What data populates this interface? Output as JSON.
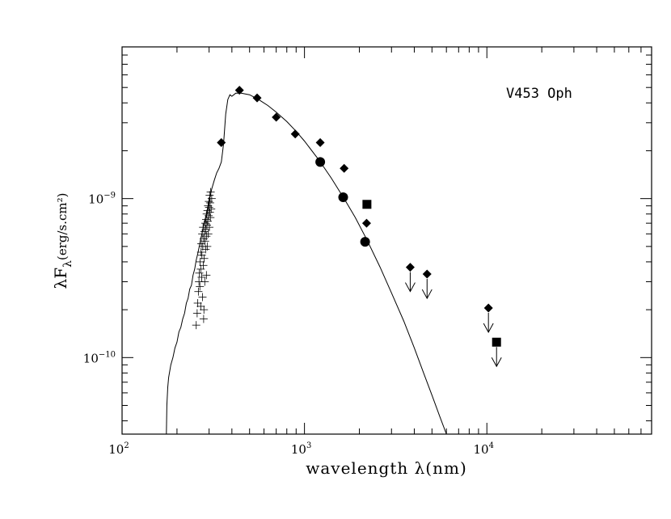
{
  "chart_data": {
    "type": "scatter",
    "title": "",
    "annotation": "V453 Oph",
    "xlabel": "wavelength λ(nm)",
    "ylabel": "λF",
    "ylabel_sub": "λ",
    "ylabel_unit": "(erg/s.cm²)",
    "x_scale": "log",
    "y_scale": "log",
    "xlim": [
      100,
      80000
    ],
    "ylim": [
      3.3e-11,
      9e-09
    ],
    "x_ticks": [
      {
        "value": 100,
        "base": "10",
        "exp": "2"
      },
      {
        "value": 1000,
        "base": "10",
        "exp": "3"
      },
      {
        "value": 10000,
        "base": "10",
        "exp": "4"
      }
    ],
    "y_ticks": [
      {
        "value": 1e-10,
        "base": "10",
        "exp": "−10"
      },
      {
        "value": 1e-09,
        "base": "10",
        "exp": "−9"
      }
    ],
    "grid": false,
    "series": [
      {
        "marker": "diamond",
        "points": [
          {
            "x": 350,
            "y": 2.25e-09
          },
          {
            "x": 440,
            "y": 4.8e-09
          },
          {
            "x": 550,
            "y": 4.3e-09
          },
          {
            "x": 700,
            "y": 3.25e-09
          },
          {
            "x": 890,
            "y": 2.55e-09
          },
          {
            "x": 1220,
            "y": 2.25e-09
          },
          {
            "x": 1650,
            "y": 1.55e-09
          },
          {
            "x": 2190,
            "y": 7e-10
          }
        ]
      },
      {
        "marker": "circle",
        "points": [
          {
            "x": 1220,
            "y": 1.7e-09
          },
          {
            "x": 1630,
            "y": 1.02e-09
          },
          {
            "x": 2150,
            "y": 5.35e-10
          }
        ]
      },
      {
        "marker": "square",
        "points": [
          {
            "x": 2200,
            "y": 9.2e-10
          }
        ]
      },
      {
        "marker": "diamond-upper-limit",
        "points": [
          {
            "x": 3800,
            "y": 3.7e-10
          },
          {
            "x": 4700,
            "y": 3.35e-10
          },
          {
            "x": 10200,
            "y": 2.05e-10
          }
        ]
      },
      {
        "marker": "square-upper-limit",
        "points": [
          {
            "x": 11300,
            "y": 1.25e-10
          }
        ]
      },
      {
        "marker": "plus",
        "points": [
          {
            "x": 255,
            "y": 1.6e-10
          },
          {
            "x": 258,
            "y": 1.9e-10
          },
          {
            "x": 260,
            "y": 2.2e-10
          },
          {
            "x": 262,
            "y": 2.6e-10
          },
          {
            "x": 264,
            "y": 3e-10
          },
          {
            "x": 265,
            "y": 3.4e-10
          },
          {
            "x": 267,
            "y": 2.8e-10
          },
          {
            "x": 268,
            "y": 4e-10
          },
          {
            "x": 270,
            "y": 3.6e-10
          },
          {
            "x": 271,
            "y": 4.6e-10
          },
          {
            "x": 272,
            "y": 5.2e-10
          },
          {
            "x": 273,
            "y": 3.2e-10
          },
          {
            "x": 274,
            "y": 4.4e-10
          },
          {
            "x": 275,
            "y": 6e-10
          },
          {
            "x": 276,
            "y": 2.4e-10
          },
          {
            "x": 277,
            "y": 5e-10
          },
          {
            "x": 278,
            "y": 6.6e-10
          },
          {
            "x": 279,
            "y": 3.8e-10
          },
          {
            "x": 280,
            "y": 5.6e-10
          },
          {
            "x": 281,
            "y": 2e-10
          },
          {
            "x": 282,
            "y": 4.2e-10
          },
          {
            "x": 283,
            "y": 6.2e-10
          },
          {
            "x": 284,
            "y": 3e-10
          },
          {
            "x": 285,
            "y": 5.4e-10
          },
          {
            "x": 286,
            "y": 7e-10
          },
          {
            "x": 287,
            "y": 4.8e-10
          },
          {
            "x": 288,
            "y": 6.4e-10
          },
          {
            "x": 289,
            "y": 7.4e-10
          },
          {
            "x": 290,
            "y": 5.8e-10
          },
          {
            "x": 291,
            "y": 8e-10
          },
          {
            "x": 292,
            "y": 6.8e-10
          },
          {
            "x": 293,
            "y": 5e-10
          },
          {
            "x": 294,
            "y": 8.4e-10
          },
          {
            "x": 295,
            "y": 7.2e-10
          },
          {
            "x": 296,
            "y": 9e-10
          },
          {
            "x": 297,
            "y": 6e-10
          },
          {
            "x": 298,
            "y": 7.8e-10
          },
          {
            "x": 299,
            "y": 9.6e-10
          },
          {
            "x": 300,
            "y": 8.8e-10
          },
          {
            "x": 301,
            "y": 6.6e-10
          },
          {
            "x": 302,
            "y": 1.05e-09
          },
          {
            "x": 303,
            "y": 8.2e-10
          },
          {
            "x": 304,
            "y": 9.4e-10
          },
          {
            "x": 305,
            "y": 7.6e-10
          },
          {
            "x": 306,
            "y": 1.1e-09
          },
          {
            "x": 308,
            "y": 8.6e-10
          },
          {
            "x": 310,
            "y": 1e-09
          },
          {
            "x": 280,
            "y": 1.75e-10
          },
          {
            "x": 270,
            "y": 2.1e-10
          },
          {
            "x": 290,
            "y": 3.3e-10
          }
        ]
      }
    ],
    "model_curve": [
      {
        "x": 175,
        "y": 3.3e-11
      },
      {
        "x": 176,
        "y": 5e-11
      },
      {
        "x": 178,
        "y": 6.5e-11
      },
      {
        "x": 180,
        "y": 7.5e-11
      },
      {
        "x": 185,
        "y": 9e-11
      },
      {
        "x": 190,
        "y": 1e-10
      },
      {
        "x": 195,
        "y": 1.15e-10
      },
      {
        "x": 200,
        "y": 1.25e-10
      },
      {
        "x": 205,
        "y": 1.45e-10
      },
      {
        "x": 210,
        "y": 1.55e-10
      },
      {
        "x": 215,
        "y": 1.75e-10
      },
      {
        "x": 220,
        "y": 1.9e-10
      },
      {
        "x": 225,
        "y": 2.2e-10
      },
      {
        "x": 230,
        "y": 2.35e-10
      },
      {
        "x": 235,
        "y": 2.7e-10
      },
      {
        "x": 240,
        "y": 2.85e-10
      },
      {
        "x": 245,
        "y": 3.3e-10
      },
      {
        "x": 250,
        "y": 3.6e-10
      },
      {
        "x": 255,
        "y": 4.1e-10
      },
      {
        "x": 260,
        "y": 4.5e-10
      },
      {
        "x": 265,
        "y": 5e-10
      },
      {
        "x": 270,
        "y": 5.6e-10
      },
      {
        "x": 275,
        "y": 6.1e-10
      },
      {
        "x": 280,
        "y": 6.8e-10
      },
      {
        "x": 285,
        "y": 7.4e-10
      },
      {
        "x": 290,
        "y": 8e-10
      },
      {
        "x": 295,
        "y": 8.8e-10
      },
      {
        "x": 300,
        "y": 9.5e-10
      },
      {
        "x": 305,
        "y": 1.05e-09
      },
      {
        "x": 310,
        "y": 1.15e-09
      },
      {
        "x": 320,
        "y": 1.3e-09
      },
      {
        "x": 330,
        "y": 1.45e-09
      },
      {
        "x": 340,
        "y": 1.55e-09
      },
      {
        "x": 350,
        "y": 1.7e-09
      },
      {
        "x": 360,
        "y": 2.2e-09
      },
      {
        "x": 370,
        "y": 3.4e-09
      },
      {
        "x": 380,
        "y": 4.2e-09
      },
      {
        "x": 390,
        "y": 4.5e-09
      },
      {
        "x": 400,
        "y": 4.4e-09
      },
      {
        "x": 420,
        "y": 4.6e-09
      },
      {
        "x": 450,
        "y": 4.6e-09
      },
      {
        "x": 500,
        "y": 4.5e-09
      },
      {
        "x": 560,
        "y": 4.2e-09
      },
      {
        "x": 630,
        "y": 3.85e-09
      },
      {
        "x": 700,
        "y": 3.5e-09
      },
      {
        "x": 800,
        "y": 3.05e-09
      },
      {
        "x": 900,
        "y": 2.65e-09
      },
      {
        "x": 1000,
        "y": 2.3e-09
      },
      {
        "x": 1200,
        "y": 1.75e-09
      },
      {
        "x": 1400,
        "y": 1.35e-09
      },
      {
        "x": 1650,
        "y": 1e-09
      },
      {
        "x": 1900,
        "y": 7.6e-10
      },
      {
        "x": 2200,
        "y": 5.5e-10
      },
      {
        "x": 2600,
        "y": 3.7e-10
      },
      {
        "x": 3000,
        "y": 2.55e-10
      },
      {
        "x": 3500,
        "y": 1.7e-10
      },
      {
        "x": 4000,
        "y": 1.15e-10
      },
      {
        "x": 4500,
        "y": 8e-11
      },
      {
        "x": 5000,
        "y": 5.8e-11
      },
      {
        "x": 5500,
        "y": 4.3e-11
      },
      {
        "x": 6000,
        "y": 3.3e-11
      }
    ]
  }
}
